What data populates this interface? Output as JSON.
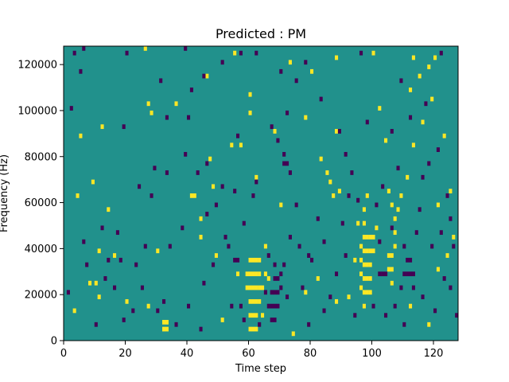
{
  "chart_data": {
    "type": "heatmap",
    "title": "Predicted : PM",
    "xlabel": "Time step",
    "ylabel": "Frequency (Hz)",
    "xlim": [
      0,
      128
    ],
    "ylim": [
      0,
      128000
    ],
    "xticks": [
      0,
      20,
      40,
      60,
      80,
      100,
      120
    ],
    "yticks": [
      0,
      20000,
      40000,
      60000,
      80000,
      100000,
      120000
    ],
    "xtick_labels": [
      "0",
      "20",
      "40",
      "60",
      "80",
      "100",
      "120"
    ],
    "ytick_labels": [
      "0",
      "20000",
      "40000",
      "60000",
      "80000",
      "100000",
      "120000"
    ],
    "grid": false,
    "legend": "none",
    "n_time_steps": 128,
    "n_freq_bins": 128,
    "bin_height_hz": 1000,
    "colors": {
      "background_level_1": "#21918c",
      "level_0": "#440154",
      "level_2": "#fde725",
      "frame": "#000000"
    },
    "background_level": 1,
    "cells": [
      [
        32,
        4,
        2
      ],
      [
        33,
        4,
        2
      ],
      [
        32,
        7,
        2
      ],
      [
        33,
        7,
        2
      ],
      [
        60,
        4,
        2
      ],
      [
        61,
        4,
        2
      ],
      [
        62,
        4,
        2
      ],
      [
        60,
        10,
        2
      ],
      [
        61,
        10,
        2
      ],
      [
        62,
        10,
        2
      ],
      [
        60,
        16,
        2
      ],
      [
        61,
        16,
        2
      ],
      [
        62,
        16,
        2
      ],
      [
        60,
        22,
        2
      ],
      [
        61,
        22,
        2
      ],
      [
        62,
        22,
        2
      ],
      [
        60,
        28,
        2
      ],
      [
        61,
        28,
        2
      ],
      [
        62,
        28,
        2
      ],
      [
        60,
        34,
        2
      ],
      [
        61,
        34,
        2
      ],
      [
        62,
        34,
        2
      ],
      [
        63,
        16,
        2
      ],
      [
        63,
        22,
        2
      ],
      [
        63,
        28,
        2
      ],
      [
        63,
        34,
        2
      ],
      [
        59,
        22,
        2
      ],
      [
        59,
        28,
        2
      ],
      [
        64,
        10,
        2
      ],
      [
        64,
        22,
        2
      ],
      [
        65,
        28,
        2
      ],
      [
        65,
        40,
        2
      ],
      [
        97,
        20,
        2
      ],
      [
        98,
        20,
        2
      ],
      [
        99,
        20,
        2
      ],
      [
        97,
        26,
        2
      ],
      [
        98,
        26,
        2
      ],
      [
        99,
        26,
        2
      ],
      [
        97,
        32,
        2
      ],
      [
        98,
        32,
        2
      ],
      [
        99,
        32,
        2
      ],
      [
        97,
        38,
        2
      ],
      [
        98,
        38,
        2
      ],
      [
        99,
        38,
        2
      ],
      [
        97,
        44,
        2
      ],
      [
        98,
        44,
        2
      ],
      [
        99,
        44,
        2
      ],
      [
        96,
        28,
        2
      ],
      [
        96,
        34,
        2
      ],
      [
        96,
        40,
        2
      ],
      [
        100,
        38,
        2
      ],
      [
        100,
        44,
        2
      ],
      [
        97,
        14,
        2
      ],
      [
        96,
        22,
        2
      ],
      [
        97,
        50,
        2
      ],
      [
        97,
        56,
        2
      ],
      [
        98,
        62,
        2
      ],
      [
        95,
        50,
        2
      ],
      [
        105,
        30,
        2
      ],
      [
        106,
        30,
        2
      ],
      [
        105,
        36,
        2
      ],
      [
        106,
        36,
        2
      ],
      [
        106,
        24,
        2
      ],
      [
        107,
        40,
        2
      ],
      [
        107,
        46,
        2
      ],
      [
        107,
        52,
        2
      ],
      [
        106,
        58,
        2
      ],
      [
        105,
        64,
        2
      ],
      [
        94,
        34,
        2
      ],
      [
        86,
        68,
        2
      ],
      [
        87,
        62,
        2
      ],
      [
        85,
        72,
        2
      ],
      [
        83,
        78,
        2
      ],
      [
        89,
        64,
        2
      ],
      [
        41,
        62,
        2
      ],
      [
        42,
        62,
        2
      ],
      [
        47,
        78,
        2
      ],
      [
        48,
        66,
        2
      ],
      [
        62,
        70,
        2
      ],
      [
        74,
        2,
        2
      ],
      [
        26,
        126,
        2
      ],
      [
        55,
        124,
        2
      ],
      [
        73,
        120,
        2
      ],
      [
        88,
        122,
        2
      ],
      [
        100,
        124,
        2
      ],
      [
        113,
        122,
        2
      ],
      [
        120,
        122,
        2
      ],
      [
        46,
        114,
        2
      ],
      [
        112,
        108,
        2
      ],
      [
        119,
        104,
        2
      ],
      [
        27,
        102,
        2
      ],
      [
        36,
        102,
        2
      ],
      [
        60,
        106,
        2
      ],
      [
        88,
        90,
        2
      ],
      [
        104,
        86,
        2
      ],
      [
        123,
        88,
        2
      ],
      [
        9,
        68,
        2
      ],
      [
        4,
        62,
        2
      ],
      [
        11,
        38,
        2
      ],
      [
        20,
        16,
        2
      ],
      [
        10,
        24,
        2
      ],
      [
        11,
        18,
        2
      ],
      [
        16,
        36,
        2
      ],
      [
        30,
        38,
        2
      ],
      [
        44,
        44,
        2
      ],
      [
        49,
        36,
        2
      ],
      [
        56,
        28,
        2
      ],
      [
        66,
        26,
        2
      ],
      [
        78,
        20,
        2
      ],
      [
        88,
        16,
        2
      ],
      [
        112,
        14,
        2
      ],
      [
        118,
        6,
        2
      ],
      [
        126,
        44,
        2
      ],
      [
        124,
        36,
        2
      ],
      [
        121,
        30,
        2
      ],
      [
        8,
        24,
        2
      ],
      [
        14,
        56,
        2
      ],
      [
        68,
        90,
        2
      ],
      [
        78,
        96,
        2
      ],
      [
        80,
        116,
        2
      ],
      [
        118,
        118,
        2
      ],
      [
        70,
        58,
        2
      ],
      [
        3,
        12,
        2
      ],
      [
        27,
        14,
        2
      ],
      [
        54,
        84,
        2
      ],
      [
        44,
        52,
        2
      ],
      [
        51,
        8,
        2
      ],
      [
        57,
        84,
        2
      ],
      [
        60,
        98,
        2
      ],
      [
        82,
        26,
        2
      ],
      [
        92,
        18,
        2
      ],
      [
        101,
        48,
        2
      ],
      [
        108,
        56,
        2
      ],
      [
        109,
        62,
        2
      ],
      [
        111,
        70,
        2
      ],
      [
        113,
        84,
        2
      ],
      [
        116,
        94,
        2
      ],
      [
        121,
        58,
        2
      ],
      [
        125,
        64,
        2
      ],
      [
        5,
        88,
        2
      ],
      [
        12,
        92,
        2
      ],
      [
        28,
        98,
        2
      ],
      [
        102,
        100,
        2
      ],
      [
        115,
        114,
        2
      ],
      [
        67,
        8,
        0
      ],
      [
        68,
        8,
        0
      ],
      [
        67,
        14,
        0
      ],
      [
        68,
        14,
        0
      ],
      [
        69,
        14,
        0
      ],
      [
        67,
        20,
        0
      ],
      [
        68,
        20,
        0
      ],
      [
        69,
        20,
        0
      ],
      [
        68,
        26,
        0
      ],
      [
        69,
        26,
        0
      ],
      [
        68,
        32,
        0
      ],
      [
        66,
        36,
        0
      ],
      [
        70,
        22,
        0
      ],
      [
        70,
        28,
        0
      ],
      [
        72,
        18,
        0
      ],
      [
        71,
        32,
        0
      ],
      [
        66,
        14,
        0
      ],
      [
        65,
        20,
        0
      ],
      [
        103,
        28,
        0
      ],
      [
        104,
        28,
        0
      ],
      [
        102,
        28,
        0
      ],
      [
        111,
        34,
        0
      ],
      [
        112,
        34,
        0
      ],
      [
        110,
        28,
        0
      ],
      [
        111,
        28,
        0
      ],
      [
        112,
        28,
        0
      ],
      [
        113,
        28,
        0
      ],
      [
        109,
        22,
        0
      ],
      [
        102,
        42,
        0
      ],
      [
        106,
        48,
        0
      ],
      [
        110,
        40,
        0
      ],
      [
        113,
        22,
        0
      ],
      [
        71,
        76,
        0
      ],
      [
        72,
        76,
        0
      ],
      [
        71,
        80,
        0
      ],
      [
        69,
        86,
        0
      ],
      [
        61,
        62,
        0
      ],
      [
        62,
        68,
        0
      ],
      [
        58,
        50,
        0
      ],
      [
        55,
        64,
        0
      ],
      [
        57,
        14,
        0
      ],
      [
        56,
        34,
        0
      ],
      [
        51,
        66,
        0
      ],
      [
        46,
        54,
        0
      ],
      [
        44,
        4,
        0
      ],
      [
        40,
        14,
        0
      ],
      [
        36,
        6,
        0
      ],
      [
        32,
        16,
        0
      ],
      [
        30,
        12,
        0
      ],
      [
        25,
        22,
        0
      ],
      [
        23,
        32,
        0
      ],
      [
        22,
        12,
        0
      ],
      [
        18,
        34,
        0
      ],
      [
        16,
        22,
        0
      ],
      [
        14,
        34,
        0
      ],
      [
        10,
        6,
        0
      ],
      [
        6,
        42,
        0
      ],
      [
        12,
        48,
        0
      ],
      [
        17,
        46,
        0
      ],
      [
        24,
        66,
        0
      ],
      [
        28,
        62,
        0
      ],
      [
        33,
        72,
        0
      ],
      [
        39,
        80,
        0
      ],
      [
        43,
        72,
        0
      ],
      [
        46,
        76,
        0
      ],
      [
        29,
        74,
        0
      ],
      [
        19,
        92,
        0
      ],
      [
        41,
        108,
        0
      ],
      [
        45,
        114,
        0
      ],
      [
        51,
        120,
        0
      ],
      [
        57,
        124,
        0
      ],
      [
        70,
        116,
        0
      ],
      [
        75,
        112,
        0
      ],
      [
        83,
        104,
        0
      ],
      [
        89,
        90,
        0
      ],
      [
        91,
        80,
        0
      ],
      [
        93,
        72,
        0
      ],
      [
        95,
        60,
        0
      ],
      [
        90,
        50,
        0
      ],
      [
        84,
        42,
        0
      ],
      [
        79,
        36,
        0
      ],
      [
        76,
        40,
        0
      ],
      [
        77,
        22,
        0
      ],
      [
        79,
        6,
        0
      ],
      [
        84,
        12,
        0
      ],
      [
        86,
        18,
        0
      ],
      [
        88,
        28,
        0
      ],
      [
        91,
        36,
        0
      ],
      [
        94,
        10,
        0
      ],
      [
        100,
        14,
        0
      ],
      [
        104,
        10,
        0
      ],
      [
        107,
        14,
        0
      ],
      [
        110,
        6,
        0
      ],
      [
        114,
        46,
        0
      ],
      [
        115,
        56,
        0
      ],
      [
        116,
        70,
        0
      ],
      [
        118,
        76,
        0
      ],
      [
        121,
        82,
        0
      ],
      [
        124,
        62,
        0
      ],
      [
        125,
        52,
        0
      ],
      [
        126,
        40,
        0
      ],
      [
        127,
        10,
        0
      ],
      [
        120,
        12,
        0
      ],
      [
        123,
        26,
        0
      ],
      [
        116,
        18,
        0
      ],
      [
        109,
        112,
        0
      ],
      [
        117,
        102,
        0
      ],
      [
        122,
        124,
        0
      ],
      [
        96,
        124,
        0
      ],
      [
        78,
        120,
        0
      ],
      [
        62,
        124,
        0
      ],
      [
        39,
        126,
        0
      ],
      [
        20,
        124,
        0
      ],
      [
        6,
        126,
        0
      ],
      [
        3,
        124,
        0
      ],
      [
        2,
        100,
        0
      ],
      [
        5,
        116,
        0
      ],
      [
        31,
        112,
        0
      ],
      [
        33,
        96,
        0
      ],
      [
        56,
        88,
        0
      ],
      [
        72,
        98,
        0
      ],
      [
        67,
        92,
        0
      ],
      [
        98,
        94,
        0
      ],
      [
        106,
        90,
        0
      ],
      [
        112,
        96,
        0
      ],
      [
        1,
        20,
        0
      ],
      [
        7,
        32,
        0
      ],
      [
        13,
        26,
        0
      ],
      [
        19,
        8,
        0
      ],
      [
        26,
        40,
        0
      ],
      [
        34,
        40,
        0
      ],
      [
        38,
        48,
        0
      ],
      [
        48,
        32,
        0
      ],
      [
        52,
        44,
        0
      ],
      [
        54,
        14,
        0
      ],
      [
        58,
        8,
        0
      ],
      [
        63,
        6,
        0
      ],
      [
        73,
        44,
        0
      ],
      [
        75,
        58,
        0
      ],
      [
        80,
        34,
        0
      ],
      [
        82,
        52,
        0
      ],
      [
        101,
        58,
        0
      ],
      [
        103,
        66,
        0
      ],
      [
        108,
        74,
        0
      ],
      [
        119,
        40,
        0
      ],
      [
        122,
        46,
        0
      ],
      [
        125,
        22,
        0
      ],
      [
        55,
        34,
        0
      ],
      [
        73,
        72,
        0
      ],
      [
        92,
        62,
        0
      ],
      [
        45,
        24,
        0
      ],
      [
        49,
        58,
        0
      ],
      [
        53,
        40,
        0
      ],
      [
        40,
        96,
        0
      ]
    ]
  }
}
